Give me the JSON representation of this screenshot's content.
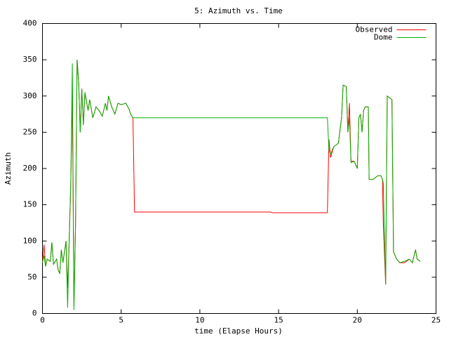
{
  "chart_data": {
    "type": "line",
    "title": "5: Azimuth vs. Time",
    "x_label": "time (Elapse Hours)",
    "y_label": "Azimuth",
    "xlim": [
      0,
      25
    ],
    "xticks": [
      0,
      5,
      10,
      15,
      20,
      25
    ],
    "ylim": [
      0,
      400
    ],
    "yticks": [
      0,
      50,
      100,
      150,
      200,
      250,
      300,
      350,
      400
    ],
    "grid": false,
    "legend": "top-right",
    "x": [
      0.0,
      0.1,
      0.2,
      0.3,
      0.5,
      0.6,
      0.7,
      0.9,
      1.0,
      1.1,
      1.2,
      1.3,
      1.5,
      1.6,
      1.7,
      1.8,
      1.9,
      2.0,
      2.1,
      2.2,
      2.3,
      2.4,
      2.5,
      2.6,
      2.7,
      2.9,
      3.0,
      3.2,
      3.4,
      3.6,
      3.8,
      4.0,
      4.1,
      4.2,
      4.4,
      4.6,
      4.8,
      5.0,
      5.3,
      5.5,
      5.6,
      5.75,
      5.85,
      10,
      14.5,
      14.6,
      18.1,
      18.2,
      18.3,
      18.5,
      18.8,
      19.0,
      19.1,
      19.3,
      19.4,
      19.5,
      19.6,
      19.8,
      20.0,
      20.1,
      20.2,
      20.3,
      20.4,
      20.5,
      20.7,
      20.75,
      21.0,
      21.3,
      21.5,
      21.6,
      21.65,
      21.8,
      21.9,
      22.2,
      22.3,
      22.5,
      22.7,
      23.0,
      23.3,
      23.5,
      23.7,
      23.8,
      24.0
    ],
    "series": [
      {
        "name": "Observed",
        "color": "#ff0000",
        "values": [
          70,
          95,
          65,
          75,
          72,
          98,
          68,
          75,
          60,
          55,
          88,
          70,
          100,
          35,
          100,
          180,
          300,
          10,
          120,
          350,
          320,
          250,
          310,
          260,
          305,
          280,
          295,
          270,
          285,
          280,
          272,
          290,
          280,
          300,
          285,
          275,
          290,
          288,
          290,
          282,
          275,
          270,
          140,
          140,
          140,
          139,
          139,
          240,
          215,
          230,
          235,
          270,
          315,
          313,
          250,
          290,
          210,
          210,
          200,
          270,
          275,
          250,
          280,
          285,
          285,
          185,
          185,
          190,
          190,
          185,
          125,
          40,
          300,
          295,
          85,
          75,
          70,
          70,
          75,
          70,
          88,
          75,
          72
        ]
      },
      {
        "name": "Dome",
        "color": "#00b000",
        "values": [
          70,
          80,
          65,
          75,
          72,
          98,
          68,
          75,
          60,
          55,
          88,
          70,
          100,
          8,
          105,
          180,
          345,
          5,
          120,
          350,
          320,
          250,
          310,
          260,
          305,
          280,
          295,
          270,
          285,
          280,
          272,
          290,
          280,
          300,
          285,
          275,
          290,
          288,
          290,
          282,
          275,
          270,
          270,
          270,
          270,
          270,
          270,
          225,
          220,
          230,
          235,
          270,
          315,
          313,
          250,
          270,
          208,
          210,
          200,
          270,
          275,
          250,
          280,
          285,
          285,
          185,
          185,
          190,
          190,
          185,
          180,
          40,
          300,
          295,
          85,
          75,
          70,
          72,
          75,
          70,
          88,
          75,
          72
        ]
      }
    ]
  }
}
